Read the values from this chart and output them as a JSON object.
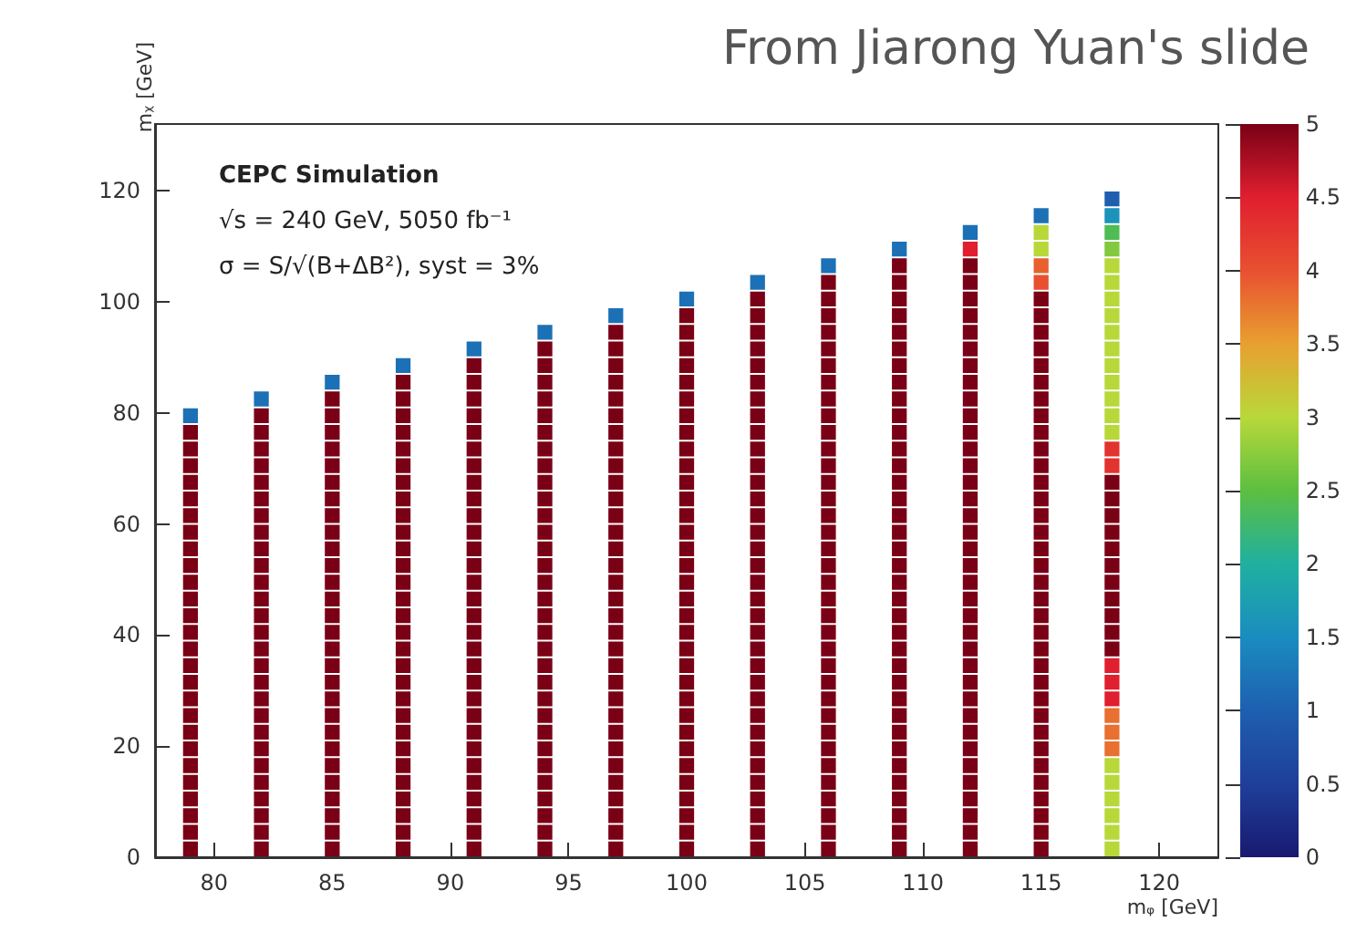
{
  "chart_data": {
    "type": "scatter",
    "marker": "square",
    "title": "From Jiarong Yuan's slide",
    "xlabel": "mᵩ [GeV]",
    "ylabel": "mᵪ [GeV]",
    "annotations": [
      "CEPC Simulation",
      "√s = 240 GeV, 5050 fb⁻¹",
      "σ = S/√(B+ΔB²), syst = 3%"
    ],
    "xlim": [
      77.5,
      122.5
    ],
    "xticks": [
      80,
      85,
      90,
      95,
      100,
      105,
      110,
      115,
      120
    ],
    "ylim": [
      0,
      132
    ],
    "yticks": [
      0,
      20,
      40,
      60,
      80,
      100,
      120
    ],
    "clim": [
      0,
      5
    ],
    "cticks": [
      0,
      0.5,
      1,
      1.5,
      2,
      2.5,
      3,
      3.5,
      4,
      4.5,
      5
    ],
    "series": [
      {
        "x": [
          79,
          79,
          79,
          79,
          79,
          79,
          79,
          79,
          79,
          79,
          79,
          79,
          79,
          79,
          79,
          79,
          79,
          79,
          79,
          79,
          79,
          79,
          79,
          79,
          79,
          79,
          79
        ],
        "values": [
          1.5,
          4.5,
          7.5,
          10.5,
          13.5,
          16.5,
          19.5,
          22.5,
          25.5,
          28.5,
          31.5,
          34.5,
          37.5,
          40.5,
          43.5,
          46.5,
          49.5,
          52.5,
          55.5,
          58.5,
          61.5,
          64.5,
          67.5,
          70.5,
          73.5,
          76.5,
          79.5
        ],
        "cvalues": [
          5,
          5,
          5,
          5,
          5,
          5,
          5,
          5,
          5,
          5,
          5,
          5,
          5,
          5,
          5,
          5,
          5,
          5,
          5,
          5,
          5,
          5,
          5,
          5,
          5,
          5,
          1.2
        ],
        "colors": [
          "#7a0016",
          "#7a0016",
          "#7a0016",
          "#7a0016",
          "#7a0016",
          "#7a0016",
          "#7a0016",
          "#7a0016",
          "#7a0016",
          "#7a0016",
          "#7a0016",
          "#7a0016",
          "#7a0016",
          "#7a0016",
          "#7a0016",
          "#7a0016",
          "#7a0016",
          "#7a0016",
          "#7a0016",
          "#7a0016",
          "#7a0016",
          "#7a0016",
          "#7a0016",
          "#7a0016",
          "#7a0016",
          "#7a0016",
          "#1c71b6"
        ]
      },
      {
        "x": [
          82,
          82,
          82,
          82,
          82,
          82,
          82,
          82,
          82,
          82,
          82,
          82,
          82,
          82,
          82,
          82,
          82,
          82,
          82,
          82,
          82,
          82,
          82,
          82,
          82,
          82,
          82,
          82
        ],
        "values": [
          1.5,
          4.5,
          7.5,
          10.5,
          13.5,
          16.5,
          19.5,
          22.5,
          25.5,
          28.5,
          31.5,
          34.5,
          37.5,
          40.5,
          43.5,
          46.5,
          49.5,
          52.5,
          55.5,
          58.5,
          61.5,
          64.5,
          67.5,
          70.5,
          73.5,
          76.5,
          79.5,
          82.5
        ],
        "cvalues": [
          5,
          5,
          5,
          5,
          5,
          5,
          5,
          5,
          5,
          5,
          5,
          5,
          5,
          5,
          5,
          5,
          5,
          5,
          5,
          5,
          5,
          5,
          5,
          5,
          5,
          5,
          5,
          1.2
        ],
        "colors": [
          "#7a0016",
          "#7a0016",
          "#7a0016",
          "#7a0016",
          "#7a0016",
          "#7a0016",
          "#7a0016",
          "#7a0016",
          "#7a0016",
          "#7a0016",
          "#7a0016",
          "#7a0016",
          "#7a0016",
          "#7a0016",
          "#7a0016",
          "#7a0016",
          "#7a0016",
          "#7a0016",
          "#7a0016",
          "#7a0016",
          "#7a0016",
          "#7a0016",
          "#7a0016",
          "#7a0016",
          "#7a0016",
          "#7a0016",
          "#7a0016",
          "#1c71b6"
        ]
      },
      {
        "x": [
          85,
          85,
          85,
          85,
          85,
          85,
          85,
          85,
          85,
          85,
          85,
          85,
          85,
          85,
          85,
          85,
          85,
          85,
          85,
          85,
          85,
          85,
          85,
          85,
          85,
          85,
          85,
          85,
          85
        ],
        "values": [
          1.5,
          4.5,
          7.5,
          10.5,
          13.5,
          16.5,
          19.5,
          22.5,
          25.5,
          28.5,
          31.5,
          34.5,
          37.5,
          40.5,
          43.5,
          46.5,
          49.5,
          52.5,
          55.5,
          58.5,
          61.5,
          64.5,
          67.5,
          70.5,
          73.5,
          76.5,
          79.5,
          82.5,
          85.5
        ],
        "cvalues": [
          5,
          5,
          5,
          5,
          5,
          5,
          5,
          5,
          5,
          5,
          5,
          5,
          5,
          5,
          5,
          5,
          5,
          5,
          5,
          5,
          5,
          5,
          5,
          5,
          5,
          5,
          5,
          5,
          1.2
        ],
        "colors": [
          "#7a0016",
          "#7a0016",
          "#7a0016",
          "#7a0016",
          "#7a0016",
          "#7a0016",
          "#7a0016",
          "#7a0016",
          "#7a0016",
          "#7a0016",
          "#7a0016",
          "#7a0016",
          "#7a0016",
          "#7a0016",
          "#7a0016",
          "#7a0016",
          "#7a0016",
          "#7a0016",
          "#7a0016",
          "#7a0016",
          "#7a0016",
          "#7a0016",
          "#7a0016",
          "#7a0016",
          "#7a0016",
          "#7a0016",
          "#7a0016",
          "#7a0016",
          "#1c71b6"
        ]
      },
      {
        "x": [
          88,
          88,
          88,
          88,
          88,
          88,
          88,
          88,
          88,
          88,
          88,
          88,
          88,
          88,
          88,
          88,
          88,
          88,
          88,
          88,
          88,
          88,
          88,
          88,
          88,
          88,
          88,
          88,
          88,
          88
        ],
        "values": [
          1.5,
          4.5,
          7.5,
          10.5,
          13.5,
          16.5,
          19.5,
          22.5,
          25.5,
          28.5,
          31.5,
          34.5,
          37.5,
          40.5,
          43.5,
          46.5,
          49.5,
          52.5,
          55.5,
          58.5,
          61.5,
          64.5,
          67.5,
          70.5,
          73.5,
          76.5,
          79.5,
          82.5,
          85.5,
          88.5
        ],
        "cvalues": [
          5,
          5,
          5,
          5,
          5,
          5,
          5,
          5,
          5,
          5,
          5,
          5,
          5,
          5,
          5,
          5,
          5,
          5,
          5,
          5,
          5,
          5,
          5,
          5,
          5,
          5,
          5,
          5,
          5,
          1.2
        ],
        "colors": [
          "#7a0016",
          "#7a0016",
          "#7a0016",
          "#7a0016",
          "#7a0016",
          "#7a0016",
          "#7a0016",
          "#7a0016",
          "#7a0016",
          "#7a0016",
          "#7a0016",
          "#7a0016",
          "#7a0016",
          "#7a0016",
          "#7a0016",
          "#7a0016",
          "#7a0016",
          "#7a0016",
          "#7a0016",
          "#7a0016",
          "#7a0016",
          "#7a0016",
          "#7a0016",
          "#7a0016",
          "#7a0016",
          "#7a0016",
          "#7a0016",
          "#7a0016",
          "#7a0016",
          "#1c71b6"
        ]
      },
      {
        "x": [
          91,
          91,
          91,
          91,
          91,
          91,
          91,
          91,
          91,
          91,
          91,
          91,
          91,
          91,
          91,
          91,
          91,
          91,
          91,
          91,
          91,
          91,
          91,
          91,
          91,
          91,
          91,
          91,
          91,
          91,
          91
        ],
        "values": [
          1.5,
          4.5,
          7.5,
          10.5,
          13.5,
          16.5,
          19.5,
          22.5,
          25.5,
          28.5,
          31.5,
          34.5,
          37.5,
          40.5,
          43.5,
          46.5,
          49.5,
          52.5,
          55.5,
          58.5,
          61.5,
          64.5,
          67.5,
          70.5,
          73.5,
          76.5,
          79.5,
          82.5,
          85.5,
          88.5,
          91.5
        ],
        "cvalues": [
          5,
          5,
          5,
          5,
          5,
          5,
          5,
          5,
          5,
          5,
          5,
          5,
          5,
          5,
          5,
          5,
          5,
          5,
          5,
          5,
          5,
          5,
          5,
          5,
          5,
          5,
          5,
          5,
          5,
          5,
          1.2
        ],
        "colors": [
          "#7a0016",
          "#7a0016",
          "#7a0016",
          "#7a0016",
          "#7a0016",
          "#7a0016",
          "#7a0016",
          "#7a0016",
          "#7a0016",
          "#7a0016",
          "#7a0016",
          "#7a0016",
          "#7a0016",
          "#7a0016",
          "#7a0016",
          "#7a0016",
          "#7a0016",
          "#7a0016",
          "#7a0016",
          "#7a0016",
          "#7a0016",
          "#7a0016",
          "#7a0016",
          "#7a0016",
          "#7a0016",
          "#7a0016",
          "#7a0016",
          "#7a0016",
          "#7a0016",
          "#7a0016",
          "#1c71b6"
        ]
      },
      {
        "x": [
          94,
          94,
          94,
          94,
          94,
          94,
          94,
          94,
          94,
          94,
          94,
          94,
          94,
          94,
          94,
          94,
          94,
          94,
          94,
          94,
          94,
          94,
          94,
          94,
          94,
          94,
          94,
          94,
          94,
          94,
          94,
          94
        ],
        "values": [
          1.5,
          4.5,
          7.5,
          10.5,
          13.5,
          16.5,
          19.5,
          22.5,
          25.5,
          28.5,
          31.5,
          34.5,
          37.5,
          40.5,
          43.5,
          46.5,
          49.5,
          52.5,
          55.5,
          58.5,
          61.5,
          64.5,
          67.5,
          70.5,
          73.5,
          76.5,
          79.5,
          82.5,
          85.5,
          88.5,
          91.5,
          94.5
        ],
        "cvalues": [
          5,
          5,
          5,
          5,
          5,
          5,
          5,
          5,
          5,
          5,
          5,
          5,
          5,
          5,
          5,
          5,
          5,
          5,
          5,
          5,
          5,
          5,
          5,
          5,
          5,
          5,
          5,
          5,
          5,
          5,
          5,
          1.2
        ],
        "colors": [
          "#7a0016",
          "#7a0016",
          "#7a0016",
          "#7a0016",
          "#7a0016",
          "#7a0016",
          "#7a0016",
          "#7a0016",
          "#7a0016",
          "#7a0016",
          "#7a0016",
          "#7a0016",
          "#7a0016",
          "#7a0016",
          "#7a0016",
          "#7a0016",
          "#7a0016",
          "#7a0016",
          "#7a0016",
          "#7a0016",
          "#7a0016",
          "#7a0016",
          "#7a0016",
          "#7a0016",
          "#7a0016",
          "#7a0016",
          "#7a0016",
          "#7a0016",
          "#7a0016",
          "#7a0016",
          "#7a0016",
          "#1c71b6"
        ]
      },
      {
        "x": [
          97,
          97,
          97,
          97,
          97,
          97,
          97,
          97,
          97,
          97,
          97,
          97,
          97,
          97,
          97,
          97,
          97,
          97,
          97,
          97,
          97,
          97,
          97,
          97,
          97,
          97,
          97,
          97,
          97,
          97,
          97,
          97,
          97
        ],
        "values": [
          1.5,
          4.5,
          7.5,
          10.5,
          13.5,
          16.5,
          19.5,
          22.5,
          25.5,
          28.5,
          31.5,
          34.5,
          37.5,
          40.5,
          43.5,
          46.5,
          49.5,
          52.5,
          55.5,
          58.5,
          61.5,
          64.5,
          67.5,
          70.5,
          73.5,
          76.5,
          79.5,
          82.5,
          85.5,
          88.5,
          91.5,
          94.5,
          97.5
        ],
        "cvalues": [
          5,
          5,
          5,
          5,
          5,
          5,
          5,
          5,
          5,
          5,
          5,
          5,
          5,
          5,
          5,
          5,
          5,
          5,
          5,
          5,
          5,
          5,
          5,
          5,
          5,
          5,
          5,
          5,
          5,
          5,
          5,
          5,
          1.2
        ],
        "colors": [
          "#7a0016",
          "#7a0016",
          "#7a0016",
          "#7a0016",
          "#7a0016",
          "#7a0016",
          "#7a0016",
          "#7a0016",
          "#7a0016",
          "#7a0016",
          "#7a0016",
          "#7a0016",
          "#7a0016",
          "#7a0016",
          "#7a0016",
          "#7a0016",
          "#7a0016",
          "#7a0016",
          "#7a0016",
          "#7a0016",
          "#7a0016",
          "#7a0016",
          "#7a0016",
          "#7a0016",
          "#7a0016",
          "#7a0016",
          "#7a0016",
          "#7a0016",
          "#7a0016",
          "#7a0016",
          "#7a0016",
          "#7a0016",
          "#1c71b6"
        ]
      },
      {
        "x": [
          100,
          100,
          100,
          100,
          100,
          100,
          100,
          100,
          100,
          100,
          100,
          100,
          100,
          100,
          100,
          100,
          100,
          100,
          100,
          100,
          100,
          100,
          100,
          100,
          100,
          100,
          100,
          100,
          100,
          100,
          100,
          100,
          100,
          100
        ],
        "values": [
          1.5,
          4.5,
          7.5,
          10.5,
          13.5,
          16.5,
          19.5,
          22.5,
          25.5,
          28.5,
          31.5,
          34.5,
          37.5,
          40.5,
          43.5,
          46.5,
          49.5,
          52.5,
          55.5,
          58.5,
          61.5,
          64.5,
          67.5,
          70.5,
          73.5,
          76.5,
          79.5,
          82.5,
          85.5,
          88.5,
          91.5,
          94.5,
          97.5,
          100.5
        ],
        "cvalues": [
          5,
          5,
          5,
          5,
          5,
          5,
          5,
          5,
          5,
          5,
          5,
          5,
          5,
          5,
          5,
          5,
          5,
          5,
          5,
          5,
          5,
          5,
          5,
          5,
          5,
          5,
          5,
          5,
          5,
          5,
          5,
          5,
          5,
          1.2
        ],
        "colors": [
          "#7a0016",
          "#7a0016",
          "#7a0016",
          "#7a0016",
          "#7a0016",
          "#7a0016",
          "#7a0016",
          "#7a0016",
          "#7a0016",
          "#7a0016",
          "#7a0016",
          "#7a0016",
          "#7a0016",
          "#7a0016",
          "#7a0016",
          "#7a0016",
          "#7a0016",
          "#7a0016",
          "#7a0016",
          "#7a0016",
          "#7a0016",
          "#7a0016",
          "#7a0016",
          "#7a0016",
          "#7a0016",
          "#7a0016",
          "#7a0016",
          "#7a0016",
          "#7a0016",
          "#7a0016",
          "#7a0016",
          "#7a0016",
          "#7a0016",
          "#1c71b6"
        ]
      },
      {
        "x": [
          103,
          103,
          103,
          103,
          103,
          103,
          103,
          103,
          103,
          103,
          103,
          103,
          103,
          103,
          103,
          103,
          103,
          103,
          103,
          103,
          103,
          103,
          103,
          103,
          103,
          103,
          103,
          103,
          103,
          103,
          103,
          103,
          103,
          103,
          103
        ],
        "values": [
          1.5,
          4.5,
          7.5,
          10.5,
          13.5,
          16.5,
          19.5,
          22.5,
          25.5,
          28.5,
          31.5,
          34.5,
          37.5,
          40.5,
          43.5,
          46.5,
          49.5,
          52.5,
          55.5,
          58.5,
          61.5,
          64.5,
          67.5,
          70.5,
          73.5,
          76.5,
          79.5,
          82.5,
          85.5,
          88.5,
          91.5,
          94.5,
          97.5,
          100.5,
          103.5
        ],
        "cvalues": [
          5,
          5,
          5,
          5,
          5,
          5,
          5,
          5,
          5,
          5,
          5,
          5,
          5,
          5,
          5,
          5,
          5,
          5,
          5,
          5,
          5,
          5,
          5,
          5,
          5,
          5,
          5,
          5,
          5,
          5,
          5,
          5,
          5,
          5,
          1.2
        ],
        "colors": [
          "#7a0016",
          "#7a0016",
          "#7a0016",
          "#7a0016",
          "#7a0016",
          "#7a0016",
          "#7a0016",
          "#7a0016",
          "#7a0016",
          "#7a0016",
          "#7a0016",
          "#7a0016",
          "#7a0016",
          "#7a0016",
          "#7a0016",
          "#7a0016",
          "#7a0016",
          "#7a0016",
          "#7a0016",
          "#7a0016",
          "#7a0016",
          "#7a0016",
          "#7a0016",
          "#7a0016",
          "#7a0016",
          "#7a0016",
          "#7a0016",
          "#7a0016",
          "#7a0016",
          "#7a0016",
          "#7a0016",
          "#7a0016",
          "#7a0016",
          "#7a0016",
          "#1c71b6"
        ]
      },
      {
        "x": [
          106,
          106,
          106,
          106,
          106,
          106,
          106,
          106,
          106,
          106,
          106,
          106,
          106,
          106,
          106,
          106,
          106,
          106,
          106,
          106,
          106,
          106,
          106,
          106,
          106,
          106,
          106,
          106,
          106,
          106,
          106,
          106,
          106,
          106,
          106,
          106
        ],
        "values": [
          1.5,
          4.5,
          7.5,
          10.5,
          13.5,
          16.5,
          19.5,
          22.5,
          25.5,
          28.5,
          31.5,
          34.5,
          37.5,
          40.5,
          43.5,
          46.5,
          49.5,
          52.5,
          55.5,
          58.5,
          61.5,
          64.5,
          67.5,
          70.5,
          73.5,
          76.5,
          79.5,
          82.5,
          85.5,
          88.5,
          91.5,
          94.5,
          97.5,
          100.5,
          103.5,
          106.5
        ],
        "cvalues": [
          5,
          5,
          5,
          5,
          5,
          5,
          5,
          5,
          5,
          5,
          5,
          5,
          5,
          5,
          5,
          5,
          5,
          5,
          5,
          5,
          5,
          5,
          5,
          5,
          5,
          5,
          5,
          5,
          5,
          5,
          5,
          5,
          5,
          5,
          5,
          1.2
        ],
        "colors": [
          "#7a0016",
          "#7a0016",
          "#7a0016",
          "#7a0016",
          "#7a0016",
          "#7a0016",
          "#7a0016",
          "#7a0016",
          "#7a0016",
          "#7a0016",
          "#7a0016",
          "#7a0016",
          "#7a0016",
          "#7a0016",
          "#7a0016",
          "#7a0016",
          "#7a0016",
          "#7a0016",
          "#7a0016",
          "#7a0016",
          "#7a0016",
          "#7a0016",
          "#7a0016",
          "#7a0016",
          "#7a0016",
          "#7a0016",
          "#7a0016",
          "#7a0016",
          "#7a0016",
          "#7a0016",
          "#7a0016",
          "#7a0016",
          "#7a0016",
          "#7a0016",
          "#7a0016",
          "#1c71b6"
        ]
      },
      {
        "x": [
          109,
          109,
          109,
          109,
          109,
          109,
          109,
          109,
          109,
          109,
          109,
          109,
          109,
          109,
          109,
          109,
          109,
          109,
          109,
          109,
          109,
          109,
          109,
          109,
          109,
          109,
          109,
          109,
          109,
          109,
          109,
          109,
          109,
          109,
          109,
          109,
          109
        ],
        "values": [
          1.5,
          4.5,
          7.5,
          10.5,
          13.5,
          16.5,
          19.5,
          22.5,
          25.5,
          28.5,
          31.5,
          34.5,
          37.5,
          40.5,
          43.5,
          46.5,
          49.5,
          52.5,
          55.5,
          58.5,
          61.5,
          64.5,
          67.5,
          70.5,
          73.5,
          76.5,
          79.5,
          82.5,
          85.5,
          88.5,
          91.5,
          94.5,
          97.5,
          100.5,
          103.5,
          106.5,
          109.5
        ],
        "cvalues": [
          5,
          5,
          5,
          5,
          5,
          5,
          5,
          5,
          5,
          5,
          5,
          5,
          5,
          5,
          5,
          5,
          5,
          5,
          5,
          5,
          5,
          5,
          5,
          5,
          5,
          5,
          5,
          5,
          5,
          5,
          5,
          5,
          5,
          5,
          5,
          5,
          1.2
        ],
        "colors": [
          "#7a0016",
          "#7a0016",
          "#7a0016",
          "#7a0016",
          "#7a0016",
          "#7a0016",
          "#7a0016",
          "#7a0016",
          "#7a0016",
          "#7a0016",
          "#7a0016",
          "#7a0016",
          "#7a0016",
          "#7a0016",
          "#7a0016",
          "#7a0016",
          "#7a0016",
          "#7a0016",
          "#7a0016",
          "#7a0016",
          "#7a0016",
          "#7a0016",
          "#7a0016",
          "#7a0016",
          "#7a0016",
          "#7a0016",
          "#7a0016",
          "#7a0016",
          "#7a0016",
          "#7a0016",
          "#7a0016",
          "#7a0016",
          "#7a0016",
          "#7a0016",
          "#7a0016",
          "#7a0016",
          "#1c71b6"
        ]
      },
      {
        "x": [
          112,
          112,
          112,
          112,
          112,
          112,
          112,
          112,
          112,
          112,
          112,
          112,
          112,
          112,
          112,
          112,
          112,
          112,
          112,
          112,
          112,
          112,
          112,
          112,
          112,
          112,
          112,
          112,
          112,
          112,
          112,
          112,
          112,
          112,
          112,
          112,
          112,
          112
        ],
        "values": [
          1.5,
          4.5,
          7.5,
          10.5,
          13.5,
          16.5,
          19.5,
          22.5,
          25.5,
          28.5,
          31.5,
          34.5,
          37.5,
          40.5,
          43.5,
          46.5,
          49.5,
          52.5,
          55.5,
          58.5,
          61.5,
          64.5,
          67.5,
          70.5,
          73.5,
          76.5,
          79.5,
          82.5,
          85.5,
          88.5,
          91.5,
          94.5,
          97.5,
          100.5,
          103.5,
          106.5,
          109.5,
          112.5
        ],
        "cvalues": [
          5,
          5,
          5,
          5,
          5,
          5,
          5,
          5,
          5,
          5,
          5,
          5,
          5,
          5,
          5,
          5,
          5,
          5,
          5,
          5,
          5,
          5,
          5,
          5,
          5,
          5,
          5,
          5,
          5,
          5,
          5,
          5,
          5,
          5,
          5,
          5,
          4.5,
          1.2
        ],
        "colors": [
          "#7a0016",
          "#7a0016",
          "#7a0016",
          "#7a0016",
          "#7a0016",
          "#7a0016",
          "#7a0016",
          "#7a0016",
          "#7a0016",
          "#7a0016",
          "#7a0016",
          "#7a0016",
          "#7a0016",
          "#7a0016",
          "#7a0016",
          "#7a0016",
          "#7a0016",
          "#7a0016",
          "#7a0016",
          "#7a0016",
          "#7a0016",
          "#7a0016",
          "#7a0016",
          "#7a0016",
          "#7a0016",
          "#7a0016",
          "#7a0016",
          "#7a0016",
          "#7a0016",
          "#7a0016",
          "#7a0016",
          "#7a0016",
          "#7a0016",
          "#7a0016",
          "#7a0016",
          "#7a0016",
          "#e01f2f",
          "#1c71b6"
        ]
      },
      {
        "x": [
          115,
          115,
          115,
          115,
          115,
          115,
          115,
          115,
          115,
          115,
          115,
          115,
          115,
          115,
          115,
          115,
          115,
          115,
          115,
          115,
          115,
          115,
          115,
          115,
          115,
          115,
          115,
          115,
          115,
          115,
          115,
          115,
          115,
          115,
          115,
          115,
          115,
          115,
          115
        ],
        "values": [
          1.5,
          4.5,
          7.5,
          10.5,
          13.5,
          16.5,
          19.5,
          22.5,
          25.5,
          28.5,
          31.5,
          34.5,
          37.5,
          40.5,
          43.5,
          46.5,
          49.5,
          52.5,
          55.5,
          58.5,
          61.5,
          64.5,
          67.5,
          70.5,
          73.5,
          76.5,
          79.5,
          82.5,
          85.5,
          88.5,
          91.5,
          94.5,
          97.5,
          100.5,
          103.5,
          106.5,
          109.5,
          112.5,
          115.5
        ],
        "cvalues": [
          5,
          5,
          5,
          5,
          5,
          5,
          5,
          5,
          5,
          5,
          5,
          5,
          5,
          5,
          5,
          5,
          5,
          5,
          5,
          5,
          5,
          5,
          5,
          5,
          5,
          5,
          5,
          5,
          5,
          5,
          5,
          5,
          5,
          5,
          4.0,
          3.9,
          3.0,
          3.0,
          1.2
        ],
        "colors": [
          "#7a0016",
          "#7a0016",
          "#7a0016",
          "#7a0016",
          "#7a0016",
          "#7a0016",
          "#7a0016",
          "#7a0016",
          "#7a0016",
          "#7a0016",
          "#7a0016",
          "#7a0016",
          "#7a0016",
          "#7a0016",
          "#7a0016",
          "#7a0016",
          "#7a0016",
          "#7a0016",
          "#7a0016",
          "#7a0016",
          "#7a0016",
          "#7a0016",
          "#7a0016",
          "#7a0016",
          "#7a0016",
          "#7a0016",
          "#7a0016",
          "#7a0016",
          "#7a0016",
          "#7a0016",
          "#7a0016",
          "#7a0016",
          "#7a0016",
          "#7a0016",
          "#e85030",
          "#e86030",
          "#b8d83a",
          "#b8d83a",
          "#1c71b6"
        ]
      },
      {
        "x": [
          118,
          118,
          118,
          118,
          118,
          118,
          118,
          118,
          118,
          118,
          118,
          118,
          118,
          118,
          118,
          118,
          118,
          118,
          118,
          118,
          118,
          118,
          118,
          118,
          118,
          118,
          118,
          118,
          118,
          118,
          118,
          118,
          118,
          118,
          118,
          118,
          118,
          118,
          118,
          118
        ],
        "values": [
          1.5,
          4.5,
          7.5,
          10.5,
          13.5,
          16.5,
          19.5,
          22.5,
          25.5,
          28.5,
          31.5,
          34.5,
          37.5,
          40.5,
          43.5,
          46.5,
          49.5,
          52.5,
          55.5,
          58.5,
          61.5,
          64.5,
          67.5,
          70.5,
          73.5,
          76.5,
          79.5,
          82.5,
          85.5,
          88.5,
          91.5,
          94.5,
          97.5,
          100.5,
          103.5,
          106.5,
          109.5,
          112.5,
          115.5,
          118.5
        ],
        "cvalues": [
          3.0,
          3.0,
          3.0,
          3.0,
          3.0,
          3.0,
          3.8,
          3.8,
          3.8,
          4.5,
          4.5,
          4.5,
          5,
          5,
          5,
          5,
          5,
          5,
          5,
          5,
          5,
          5,
          5,
          4.3,
          4.3,
          3.0,
          3.0,
          3.0,
          3.0,
          3.0,
          3.0,
          3.0,
          3.0,
          3.0,
          3.0,
          3.0,
          2.7,
          2.4,
          1.6,
          1.0
        ],
        "colors": [
          "#b8d83a",
          "#b8d83a",
          "#b8d83a",
          "#b8d83a",
          "#b8d83a",
          "#b8d83a",
          "#e87030",
          "#e87030",
          "#e87030",
          "#e01f2f",
          "#e01f2f",
          "#e01f2f",
          "#7a0016",
          "#7a0016",
          "#7a0016",
          "#7a0016",
          "#7a0016",
          "#7a0016",
          "#7a0016",
          "#7a0016",
          "#7a0016",
          "#7a0016",
          "#7a0016",
          "#e3332f",
          "#e3332f",
          "#b8d83a",
          "#b8d83a",
          "#b8d83a",
          "#b8d83a",
          "#b8d83a",
          "#b8d83a",
          "#b8d83a",
          "#b8d83a",
          "#b8d83a",
          "#b8d83a",
          "#b8d83a",
          "#81c93e",
          "#50bc53",
          "#1b93ba",
          "#1e5fb0"
        ]
      }
    ]
  }
}
